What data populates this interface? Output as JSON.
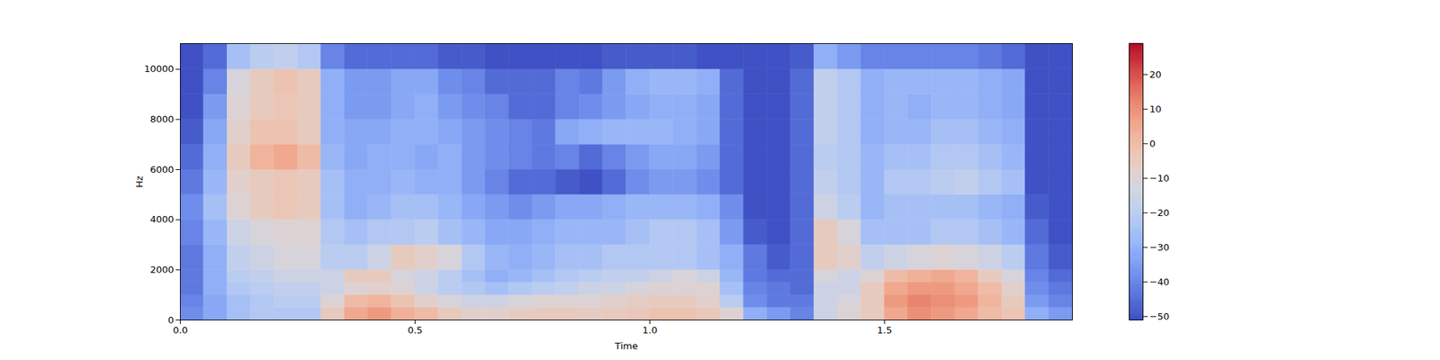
{
  "chart_data": {
    "type": "heatmap",
    "xlabel": "Time",
    "ylabel": "Hz",
    "xlim": [
      0,
      1.9
    ],
    "xticks": [
      0,
      0.5,
      1,
      1.5
    ],
    "ylim": [
      0,
      11025
    ],
    "yticks": [
      0,
      2000,
      4000,
      6000,
      8000,
      10000
    ],
    "x_edges": [
      0,
      0.05,
      0.1,
      0.15,
      0.2,
      0.25,
      0.3,
      0.35,
      0.4,
      0.45,
      0.5,
      0.55,
      0.6,
      0.65,
      0.7,
      0.75,
      0.8,
      0.85,
      0.9,
      0.95,
      1.0,
      1.05,
      1.1,
      1.15,
      1.2,
      1.25,
      1.3,
      1.35,
      1.4,
      1.45,
      1.5,
      1.55,
      1.6,
      1.65,
      1.7,
      1.75,
      1.8,
      1.85,
      1.9
    ],
    "y_edges": [
      0,
      500,
      1000,
      1500,
      2000,
      3000,
      4000,
      5000,
      6000,
      7000,
      8000,
      9000,
      10000,
      11025
    ],
    "cells": [
      [
        -38,
        -40,
        -42,
        -42,
        -42,
        -40,
        -38,
        -42,
        -45,
        -48,
        -50,
        -50,
        -50
      ],
      [
        -32,
        -32,
        -30,
        -30,
        -30,
        -28,
        -25,
        -28,
        -30,
        -32,
        -35,
        -40,
        -45
      ],
      [
        -25,
        -25,
        -22,
        -20,
        -18,
        -15,
        -10,
        -8,
        -5,
        -8,
        -10,
        -12,
        -25
      ],
      [
        -22,
        -22,
        -20,
        -18,
        -15,
        -12,
        -5,
        -5,
        2,
        -2,
        -5,
        -5,
        -20
      ],
      [
        -22,
        -20,
        -18,
        -15,
        -12,
        -10,
        -3,
        -3,
        5,
        -2,
        -3,
        -2,
        -18
      ],
      [
        -22,
        -20,
        -18,
        -15,
        -12,
        -10,
        -5,
        -5,
        0,
        -5,
        -5,
        -5,
        -22
      ],
      [
        -5,
        -10,
        -15,
        -15,
        -20,
        -22,
        -25,
        -25,
        -28,
        -30,
        -30,
        -30,
        -40
      ],
      [
        5,
        0,
        -10,
        -5,
        -20,
        -25,
        -30,
        -30,
        -32,
        -32,
        -35,
        -35,
        -45
      ],
      [
        8,
        2,
        -8,
        -5,
        -15,
        -22,
        -28,
        -30,
        -30,
        -32,
        -35,
        -35,
        -45
      ],
      [
        3,
        -2,
        -10,
        -12,
        -5,
        -22,
        -25,
        -28,
        -30,
        -30,
        -32,
        -32,
        -45
      ],
      [
        0,
        -8,
        -15,
        -15,
        -8,
        -20,
        -25,
        -30,
        -32,
        -30,
        -30,
        -32,
        -45
      ],
      [
        -5,
        -12,
        -20,
        -20,
        -12,
        -25,
        -28,
        -30,
        -30,
        -32,
        -35,
        -38,
        -48
      ],
      [
        -8,
        -15,
        -22,
        -25,
        -22,
        -28,
        -32,
        -35,
        -35,
        -35,
        -38,
        -40,
        -48
      ],
      [
        -8,
        -15,
        -25,
        -30,
        -28,
        -32,
        -35,
        -40,
        -38,
        -38,
        -40,
        -45,
        -50
      ],
      [
        -6,
        -12,
        -22,
        -28,
        -30,
        -32,
        -38,
        -45,
        -40,
        -40,
        -45,
        -45,
        -50
      ],
      [
        -5,
        -10,
        -20,
        -25,
        -28,
        -30,
        -35,
        -45,
        -42,
        -42,
        -45,
        -45,
        -50
      ],
      [
        -5,
        -10,
        -18,
        -22,
        -25,
        -28,
        -32,
        -48,
        -40,
        -32,
        -40,
        -40,
        -50
      ],
      [
        -6,
        -10,
        -15,
        -20,
        -25,
        -28,
        -32,
        -50,
        -45,
        -30,
        -38,
        -42,
        -50
      ],
      [
        -5,
        -8,
        -15,
        -18,
        -22,
        -28,
        -30,
        -45,
        -40,
        -28,
        -35,
        -35,
        -48
      ],
      [
        -4,
        -6,
        -12,
        -18,
        -22,
        -25,
        -28,
        -38,
        -35,
        -28,
        -32,
        -30,
        -48
      ],
      [
        -2,
        -5,
        -10,
        -15,
        -22,
        -22,
        -28,
        -35,
        -32,
        -28,
        -30,
        -28,
        -48
      ],
      [
        -2,
        -5,
        -10,
        -12,
        -22,
        -22,
        -28,
        -35,
        -32,
        -30,
        -30,
        -28,
        -48
      ],
      [
        -4,
        -8,
        -10,
        -15,
        -25,
        -25,
        -30,
        -38,
        -35,
        -32,
        -32,
        -30,
        -50
      ],
      [
        -10,
        -20,
        -25,
        -28,
        -30,
        -35,
        -38,
        -45,
        -45,
        -45,
        -45,
        -45,
        -50
      ],
      [
        -30,
        -38,
        -40,
        -42,
        -42,
        -48,
        -50,
        -50,
        -50,
        -50,
        -50,
        -50,
        -50
      ],
      [
        -35,
        -42,
        -42,
        -45,
        -48,
        -50,
        -50,
        -50,
        -50,
        -50,
        -50,
        -50,
        -50
      ],
      [
        -40,
        -42,
        -45,
        -45,
        -45,
        -45,
        -45,
        -45,
        -45,
        -45,
        -45,
        -45,
        -48
      ],
      [
        -15,
        -15,
        -15,
        -12,
        -5,
        -5,
        -15,
        -18,
        -20,
        -18,
        -18,
        -18,
        -30
      ],
      [
        -10,
        -12,
        -15,
        -15,
        -8,
        -12,
        -20,
        -22,
        -22,
        -22,
        -22,
        -22,
        -35
      ],
      [
        -5,
        -5,
        -5,
        -10,
        -18,
        -25,
        -28,
        -28,
        -28,
        -30,
        -30,
        -30,
        -40
      ],
      [
        5,
        8,
        5,
        0,
        -15,
        -25,
        -25,
        -22,
        -25,
        -28,
        -28,
        -28,
        -40
      ],
      [
        10,
        12,
        8,
        3,
        -12,
        -25,
        -25,
        -22,
        -25,
        -28,
        -30,
        -28,
        -40
      ],
      [
        8,
        10,
        8,
        5,
        -10,
        -22,
        -25,
        -20,
        -22,
        -25,
        -28,
        -28,
        -40
      ],
      [
        5,
        8,
        5,
        2,
        -12,
        -22,
        -25,
        -18,
        -22,
        -25,
        -28,
        -28,
        -40
      ],
      [
        0,
        2,
        0,
        -5,
        -15,
        -25,
        -28,
        -22,
        -25,
        -28,
        -30,
        -30,
        -42
      ],
      [
        -3,
        -5,
        -8,
        -12,
        -20,
        -28,
        -30,
        -25,
        -28,
        -30,
        -32,
        -32,
        -45
      ],
      [
        -30,
        -35,
        -38,
        -40,
        -42,
        -45,
        -48,
        -50,
        -50,
        -50,
        -50,
        -50,
        -50
      ],
      [
        -35,
        -40,
        -42,
        -45,
        -48,
        -50,
        -50,
        -50,
        -50,
        -50,
        -50,
        -50,
        -50
      ]
    ],
    "colorbar": {
      "range": [
        -51,
        29
      ],
      "ticks": [
        -50,
        -40,
        -30,
        -20,
        -10,
        0,
        10,
        20
      ]
    }
  }
}
